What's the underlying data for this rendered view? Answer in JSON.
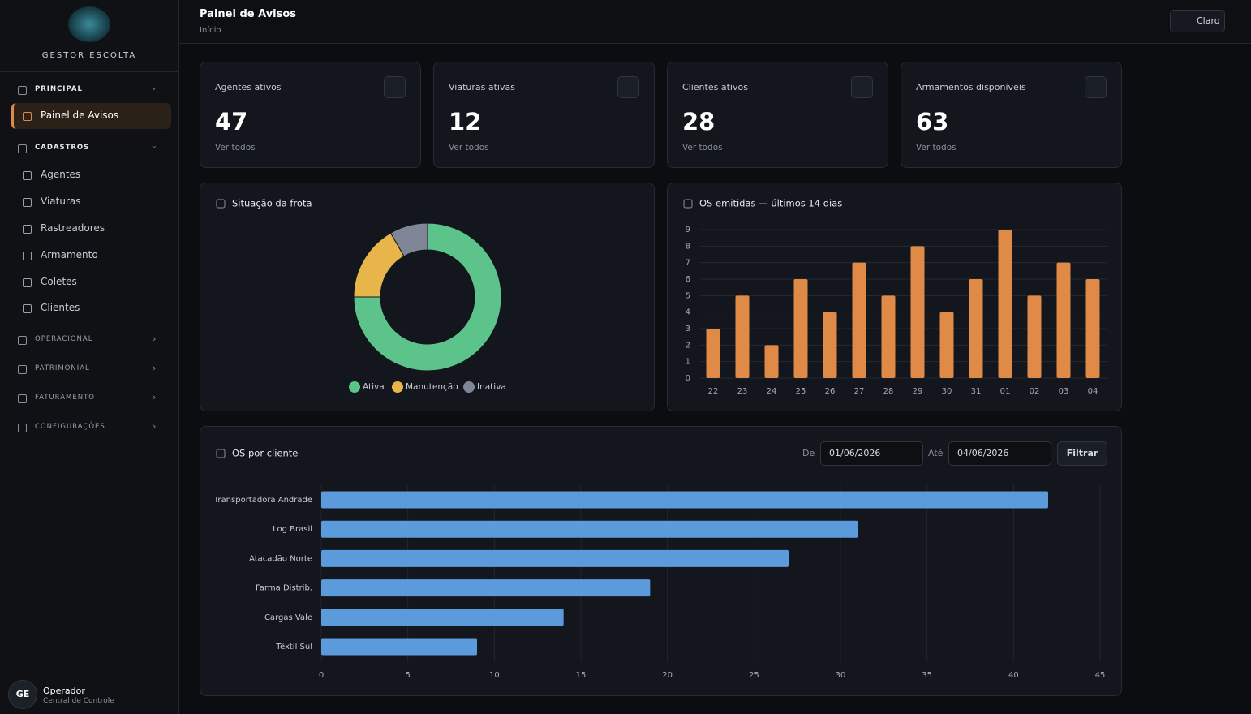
{
  "sidebar": {
    "brand": "GESTOR ESCOLTA",
    "sections": [
      {
        "title": "PRINCIPAL",
        "items": [
          "Painel de Avisos"
        ]
      },
      {
        "title": "CADASTROS",
        "items": [
          "Agentes",
          "Viaturas",
          "Rastreadores",
          "Armamento",
          "Coletes",
          "Clientes"
        ]
      },
      {
        "title": "OPERACIONAL"
      },
      {
        "title": "PATRIMONIAL"
      },
      {
        "title": "FATURAMENTO"
      },
      {
        "title": "CONFIGURAÇÕES"
      }
    ],
    "user": {
      "initials": "GE",
      "name": "Operador",
      "role": "Central de Controle"
    }
  },
  "header": {
    "title": "Painel de Avisos",
    "breadcrumb": "Início",
    "theme_button": "Claro"
  },
  "cards": [
    {
      "label": "Agentes ativos",
      "value": 47,
      "link": "Ver todos"
    },
    {
      "label": "Viaturas ativas",
      "value": 12,
      "link": "Ver todos"
    },
    {
      "label": "Clientes ativos",
      "value": 28,
      "link": "Ver todos"
    },
    {
      "label": "Armamentos disponíveis",
      "value": 63,
      "link": "Ver todos"
    }
  ],
  "filter": {
    "from_label": "De",
    "from": "01/06/2026",
    "to_label": "Até",
    "to": "04/06/2026",
    "button": "Filtrar"
  },
  "chart_data": [
    {
      "type": "pie",
      "title": "Situação da frota",
      "categories": [
        "Ativa",
        "Manutenção",
        "Inativa"
      ],
      "values": [
        9,
        2,
        1
      ],
      "colors": [
        "#5cc48a",
        "#e8b54a",
        "#7f8797"
      ],
      "donut": true,
      "legend": "bottom"
    },
    {
      "type": "bar",
      "title": "OS emitidas — últimos 14 dias",
      "categories": [
        "22",
        "23",
        "24",
        "25",
        "26",
        "27",
        "28",
        "29",
        "30",
        "31",
        "01",
        "02",
        "03",
        "04"
      ],
      "values": [
        3,
        5,
        2,
        6,
        4,
        7,
        5,
        8,
        4,
        6,
        9,
        5,
        7,
        6
      ],
      "color": "#e08a48",
      "ylim": [
        0,
        9
      ],
      "yticks": [
        0,
        1,
        2,
        3,
        4,
        5,
        6,
        7,
        8,
        9
      ],
      "grid": true
    },
    {
      "type": "hbar",
      "title": "OS por cliente",
      "categories": [
        "Transportadora Andrade",
        "Log Brasil",
        "Atacadão Norte",
        "Farma Distrib.",
        "Cargas Vale",
        "Têxtil Sul"
      ],
      "values": [
        42,
        31,
        27,
        19,
        14,
        9
      ],
      "color": "#5b9bdc",
      "xlim": [
        0,
        45
      ],
      "xticks": [
        0,
        5,
        10,
        15,
        20,
        25,
        30,
        35,
        40,
        45
      ],
      "grid": true
    }
  ]
}
